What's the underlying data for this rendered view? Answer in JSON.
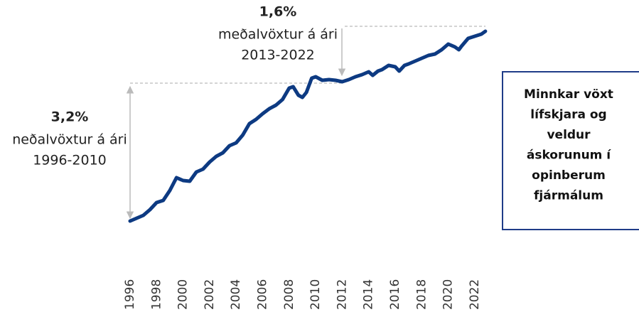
{
  "chart_data": {
    "type": "line",
    "x": [
      1996.0,
      1996.5,
      1997.0,
      1997.5,
      1998.0,
      1998.5,
      1999.0,
      1999.5,
      2000.0,
      2000.5,
      2001.0,
      2001.5,
      2002.0,
      2002.5,
      2003.0,
      2003.5,
      2004.0,
      2004.5,
      2005.0,
      2005.5,
      2006.0,
      2006.5,
      2007.0,
      2007.5,
      2008.0,
      2008.3,
      2008.7,
      2009.0,
      2009.3,
      2009.7,
      2010.0,
      2010.5,
      2011.0,
      2011.5,
      2012.0,
      2012.5,
      2013.0,
      2013.5,
      2014.0,
      2014.3,
      2014.7,
      2015.0,
      2015.5,
      2016.0,
      2016.3,
      2016.7,
      2017.0,
      2017.5,
      2018.0,
      2018.5,
      2019.0,
      2019.5,
      2020.0,
      2020.5,
      2020.8,
      2021.0,
      2021.5,
      2022.0,
      2022.5,
      2022.8
    ],
    "series": [
      {
        "color": "#0d3a82",
        "values": [
          39,
          43,
          47,
          55,
          65,
          68,
          82,
          100,
          96,
          95,
          108,
          112,
          122,
          130,
          135,
          145,
          149,
          160,
          176,
          182,
          190,
          197,
          202,
          210,
          226,
          228,
          216,
          213,
          220,
          240,
          242,
          237,
          238,
          237,
          235,
          238,
          242,
          245,
          249,
          244,
          250,
          252,
          258,
          256,
          250,
          258,
          260,
          264,
          268,
          272,
          274,
          280,
          288,
          284,
          280,
          285,
          296,
          299,
          302,
          306
        ]
      }
    ],
    "xlim": [
      1996,
      2023
    ],
    "ylim": [
      0,
      330
    ],
    "xticks": [
      1996,
      1998,
      2000,
      2002,
      2004,
      2006,
      2008,
      2010,
      2012,
      2014,
      2016,
      2018,
      2020,
      2022
    ],
    "annotations": [
      {
        "value": "3,2%",
        "lines": [
          "neðalvöxtur á ári",
          "1996-2010"
        ]
      },
      {
        "value": "1,6%",
        "lines": [
          "meðalvöxtur á ári",
          "2013-2022"
        ]
      }
    ],
    "callout": [
      "Minnkar vöxt",
      "lífskjara og",
      "veldur",
      "áskorunum í",
      "opinberum",
      "fjármálum"
    ]
  }
}
